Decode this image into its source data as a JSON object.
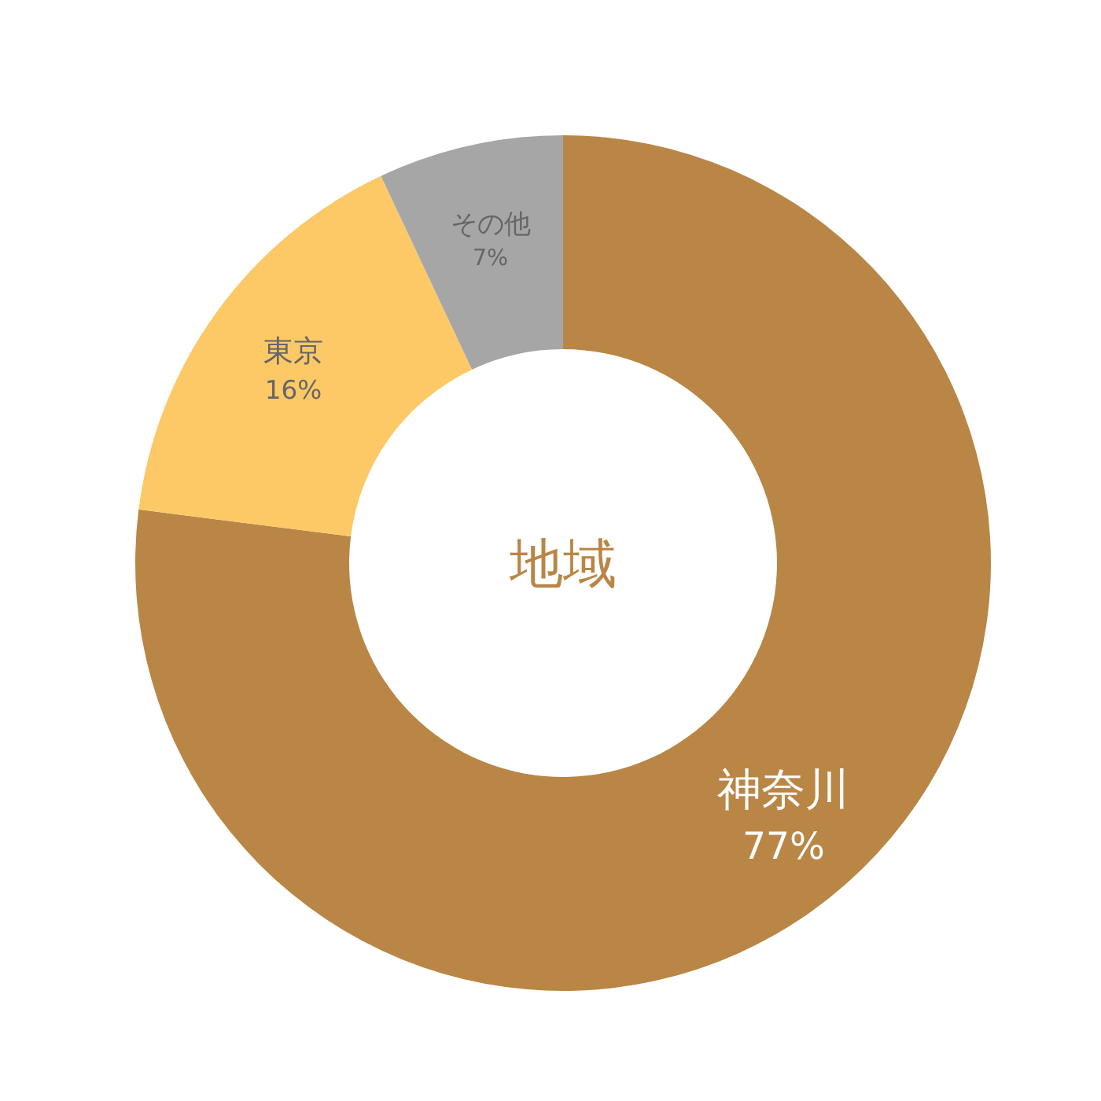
{
  "chart_data": {
    "type": "donut",
    "title": "地域",
    "categories": [
      "神奈川",
      "東京",
      "その他"
    ],
    "values": [
      77,
      16,
      7
    ],
    "value_labels": [
      "77%",
      "16%",
      "7%"
    ],
    "colors": [
      "#b98646",
      "#fdc966",
      "#a6a6a6"
    ]
  }
}
